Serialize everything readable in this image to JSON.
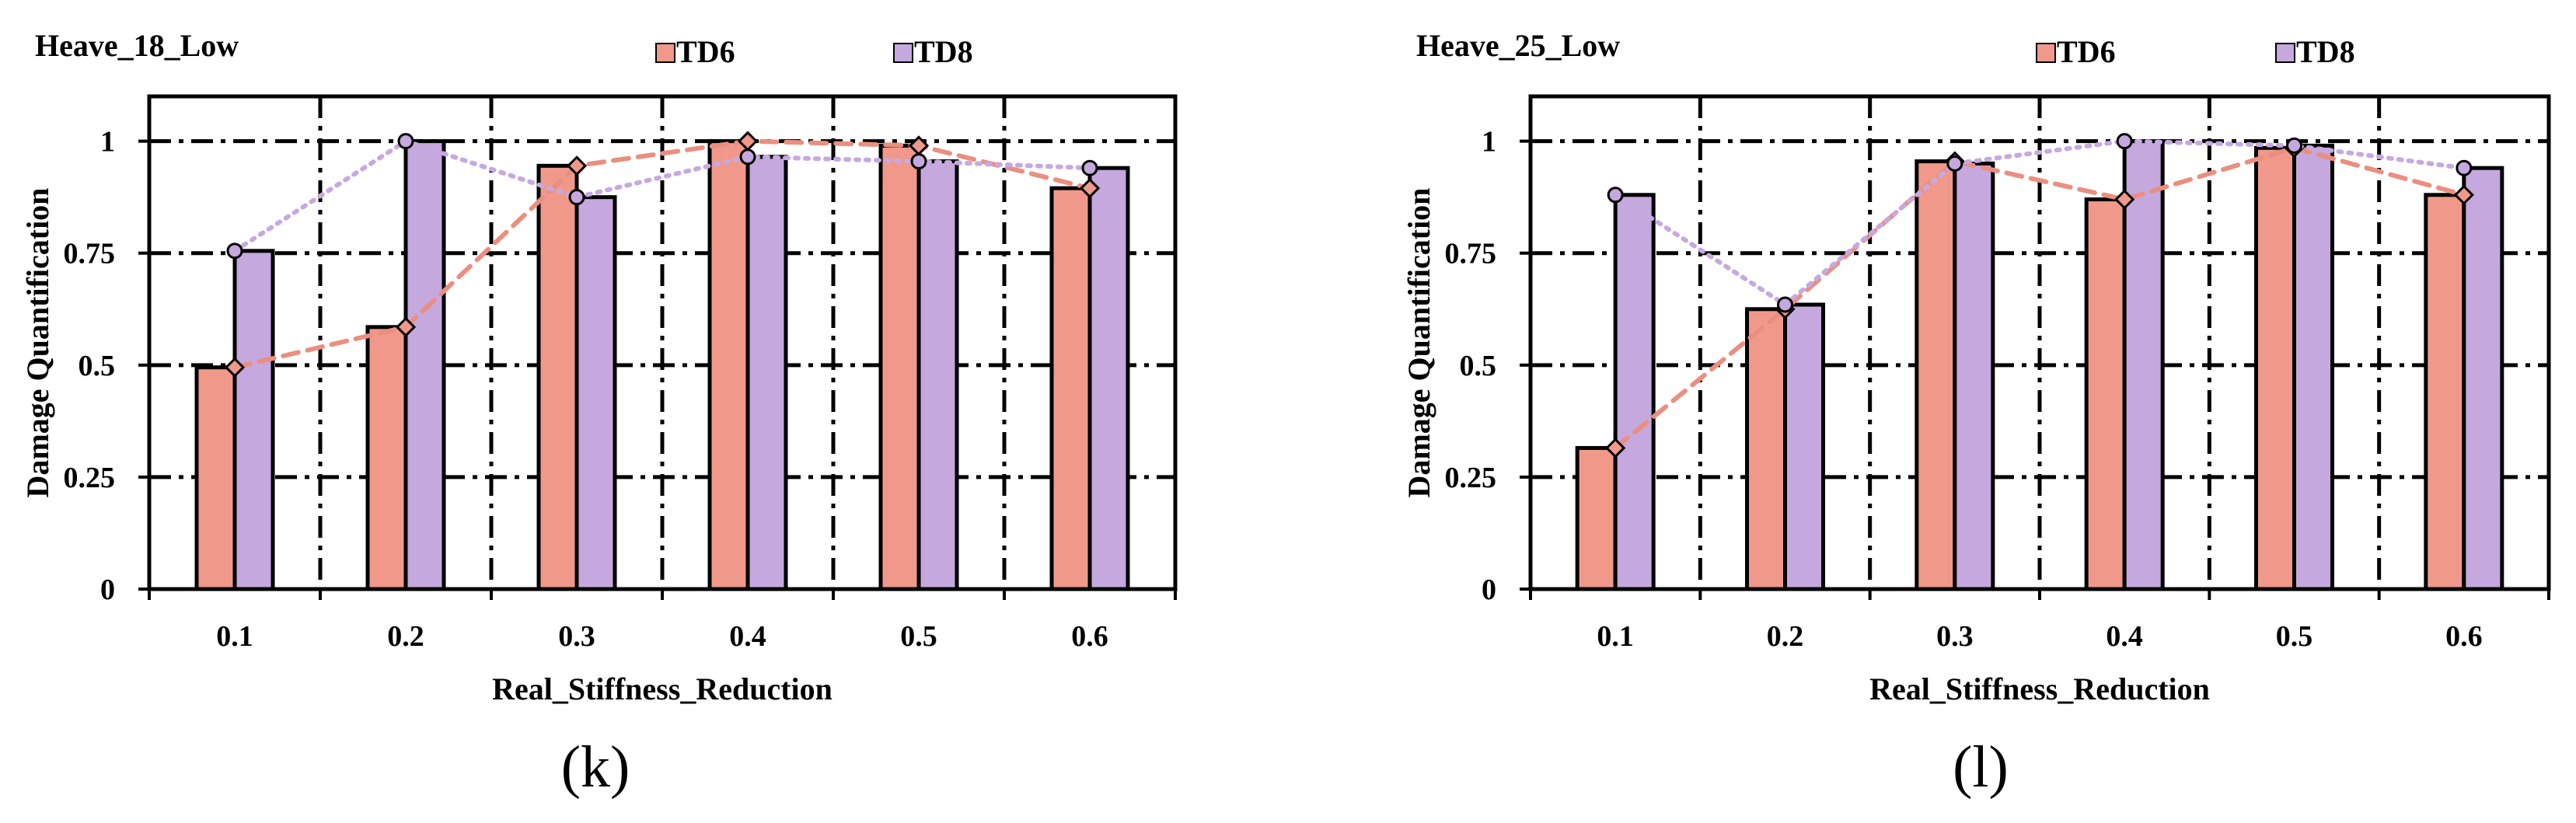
{
  "colors": {
    "td6_fill": "#f0998a",
    "td8_fill": "#c5a8dd",
    "td6_line": "#ea8f80",
    "td8_line": "#c6a9e0",
    "frame": "#000000"
  },
  "chart_data": [
    {
      "type": "bar",
      "title": "Heave_18_Low",
      "panel_label": "(k)",
      "xlabel": "Real_Stiffness_Reduction",
      "ylabel": "Damage Quantification",
      "categories": [
        "0.1",
        "0.2",
        "0.3",
        "0.4",
        "0.5",
        "0.6"
      ],
      "ylim": [
        0,
        1.1
      ],
      "yticks": [
        0,
        0.25,
        0.5,
        0.75,
        1
      ],
      "ytick_labels": [
        "0",
        "0.25",
        "0.5",
        "0.75",
        "1"
      ],
      "grid": true,
      "legend_position": "top",
      "series": [
        {
          "name": "TD6",
          "values": [
            0.495,
            0.585,
            0.945,
            1.0,
            0.99,
            0.895
          ],
          "line_style": "dashed",
          "marker": "diamond"
        },
        {
          "name": "TD8",
          "values": [
            0.755,
            1.0,
            0.875,
            0.965,
            0.955,
            0.94
          ],
          "line_style": "dotted",
          "marker": "circle"
        }
      ]
    },
    {
      "type": "bar",
      "title": "Heave_25_Low",
      "panel_label": "(l)",
      "xlabel": "Real_Stiffness_Reduction",
      "ylabel": "Damage Quantification",
      "categories": [
        "0.1",
        "0.2",
        "0.3",
        "0.4",
        "0.5",
        "0.6"
      ],
      "ylim": [
        0,
        1.1
      ],
      "yticks": [
        0,
        0.25,
        0.5,
        0.75,
        1
      ],
      "ytick_labels": [
        "0",
        "0.25",
        "0.5",
        "0.75",
        "1"
      ],
      "grid": true,
      "legend_position": "top",
      "series": [
        {
          "name": "TD6",
          "values": [
            0.315,
            0.625,
            0.955,
            0.87,
            0.985,
            0.88
          ],
          "line_style": "dashed",
          "marker": "diamond"
        },
        {
          "name": "TD8",
          "values": [
            0.88,
            0.635,
            0.95,
            1.0,
            0.99,
            0.94
          ],
          "line_style": "dotted",
          "marker": "circle"
        }
      ]
    }
  ]
}
